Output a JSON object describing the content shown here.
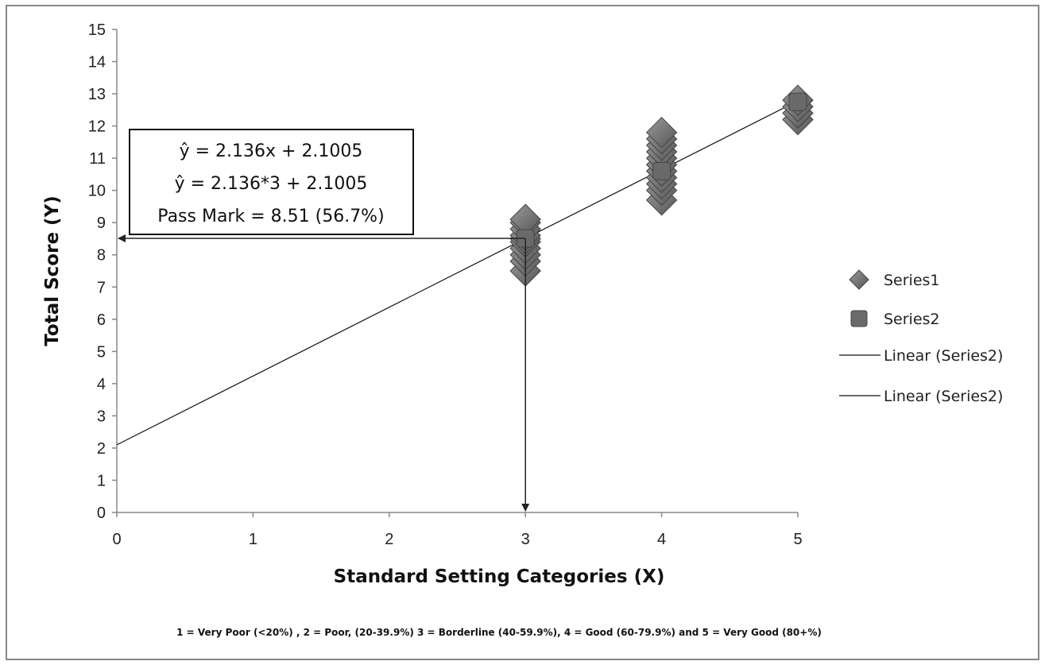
{
  "chart_data": {
    "type": "scatter",
    "xlabel": "Standard Setting Categories (X)",
    "ylabel": "Total Score (Y)",
    "xlim": [
      0,
      5
    ],
    "ylim": [
      0,
      15
    ],
    "x_ticks": [
      "0",
      "1",
      "2",
      "3",
      "4",
      "5"
    ],
    "y_ticks": [
      "0",
      "1",
      "2",
      "3",
      "4",
      "5",
      "6",
      "7",
      "8",
      "9",
      "10",
      "11",
      "12",
      "13",
      "14",
      "15"
    ],
    "grid": false,
    "legend_position": "right",
    "series": [
      {
        "name": "Series1",
        "marker": "diamond",
        "color": "#6e6e6e",
        "points": [
          [
            3,
            7.5
          ],
          [
            3,
            7.8
          ],
          [
            3,
            8.0
          ],
          [
            3,
            8.2
          ],
          [
            3,
            8.4
          ],
          [
            3,
            8.5
          ],
          [
            3,
            8.6
          ],
          [
            3,
            8.8
          ],
          [
            3,
            9.0
          ],
          [
            3,
            9.1
          ],
          [
            4,
            9.7
          ],
          [
            4,
            10.0
          ],
          [
            4,
            10.2
          ],
          [
            4,
            10.4
          ],
          [
            4,
            10.6
          ],
          [
            4,
            10.8
          ],
          [
            4,
            11.0
          ],
          [
            4,
            11.2
          ],
          [
            4,
            11.4
          ],
          [
            4,
            11.6
          ],
          [
            4,
            11.8
          ],
          [
            5,
            12.2
          ],
          [
            5,
            12.4
          ],
          [
            5,
            12.6
          ],
          [
            5,
            12.8
          ]
        ]
      },
      {
        "name": "Series2",
        "marker": "square",
        "color": "#6a6a6a",
        "points": [
          [
            3,
            8.51
          ],
          [
            4,
            10.6
          ],
          [
            5,
            12.75
          ]
        ]
      }
    ],
    "trendlines": [
      {
        "name": "Linear (Series2)",
        "slope": 2.136,
        "intercept": 2.1005
      },
      {
        "name": "Linear (Series2)",
        "slope": 2.136,
        "intercept": 2.1005
      }
    ],
    "annotation": {
      "lines": [
        "ŷ = 2.136x + 2.1005",
        "ŷ = 2.136*3 + 2.1005",
        "Pass Mark = 8.51 (56.7%)"
      ],
      "pass_x": 3,
      "pass_y": 8.51
    },
    "footnote": "1 = Very Poor (<20%) , 2 = Poor, (20-39.9%) 3 = Borderline (40-59.9%), 4 = Good (60-79.9%) and 5 = Very Good (80+%)"
  }
}
